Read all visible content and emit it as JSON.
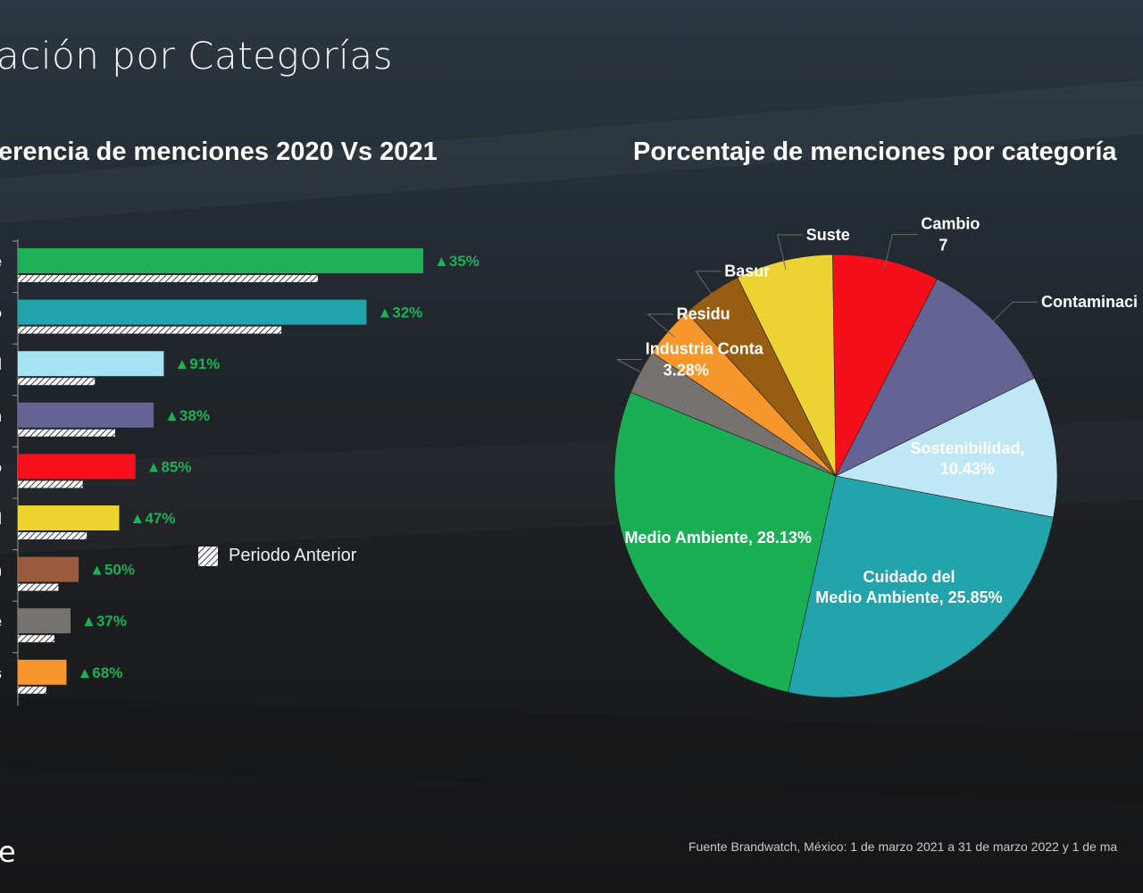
{
  "slide": {
    "title": "ación por Categorías",
    "left_subtitle": "erencia de menciones 2020 Vs 2021",
    "right_subtitle": "Porcentaje de menciones por categoría",
    "legend_label": "Periodo Anterior",
    "logo_fragment": "e",
    "source": "Fuente Brandwatch, México: 1 de marzo 2021 a 31 de marzo 2022 y 1 de ma"
  },
  "chart_data": [
    {
      "type": "bar",
      "orientation": "horizontal",
      "category_tick_fragments": [
        "e",
        "o",
        "d",
        "n",
        "o",
        "d",
        "n",
        "e",
        "s"
      ],
      "colors": [
        "#1db055",
        "#23a3ad",
        "#a7e2f3",
        "#646394",
        "#f5101c",
        "#eed32f",
        "#9b5b3e",
        "#777371",
        "#f7962a"
      ],
      "current_values": [
        100,
        86,
        36,
        33.5,
        29,
        25,
        15,
        13,
        12
      ],
      "previous_values": [
        74,
        65,
        19,
        24,
        16,
        17,
        10,
        9,
        7
      ],
      "change_labels": [
        "▲35%",
        "▲32%",
        "▲91%",
        "▲38%",
        "▲85%",
        "▲47%",
        "▲50%",
        "▲37%",
        "▲68%"
      ],
      "change_color": "#1db055",
      "legend": [
        "Periodo Anterior"
      ]
    },
    {
      "type": "pie",
      "slices": [
        {
          "label": "Medio Ambiente, 28.13%",
          "value": 28.13,
          "color": "#1aaf55",
          "label_inside": true
        },
        {
          "label": "Cuidado del Medio Ambiente, 25.85%",
          "value": 25.85,
          "color": "#23a4ad",
          "label_inside": true
        },
        {
          "label": "Sostenibilidad, 10.43%",
          "value": 10.43,
          "color": "#bfe7f6",
          "label_inside": true
        },
        {
          "label": "Contaminaci",
          "value": 10.3,
          "color": "#646494",
          "label_inside": false
        },
        {
          "label": "Cambio 7",
          "value": 7.9,
          "color": "#f50f1b",
          "label_inside": false
        },
        {
          "label": "Suste",
          "value": 7.2,
          "color": "#edd332",
          "label_inside": false
        },
        {
          "label": "Basur",
          "value": 4.5,
          "color": "#975d13",
          "label_inside": false
        },
        {
          "label": "Residu",
          "value": 3.9,
          "color": "#f7962a",
          "label_inside": false
        },
        {
          "label": "Industria Conta 3.28%",
          "value": 3.28,
          "color": "#767270",
          "label_inside": false
        }
      ]
    }
  ]
}
